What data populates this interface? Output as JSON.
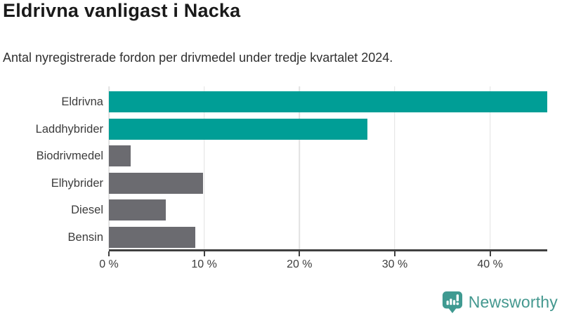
{
  "header": {
    "title": "Eldrivna vanligast i Nacka",
    "subtitle": "Antal nyregistrerade fordon per drivmedel under tredje kvartalet 2024."
  },
  "chart_data": {
    "type": "bar",
    "orientation": "horizontal",
    "title": "Eldrivna vanligast i Nacka",
    "subtitle": "Antal nyregistrerade fordon per drivmedel under tredje kvartalet 2024.",
    "categories": [
      "Eldrivna",
      "Laddhybrider",
      "Biodrivmedel",
      "Elhybrider",
      "Diesel",
      "Bensin"
    ],
    "values": [
      46,
      27.1,
      2.3,
      9.9,
      6,
      9.1
    ],
    "unit": "%",
    "xlabel": "",
    "ylabel": "",
    "xlim": [
      0,
      46
    ],
    "grid": "vertical",
    "legend": "none",
    "xticks": [
      {
        "value": 0,
        "label": "0 %"
      },
      {
        "value": 10,
        "label": "10 %"
      },
      {
        "value": 20,
        "label": "20 %"
      },
      {
        "value": 30,
        "label": "30 %"
      },
      {
        "value": 40,
        "label": "40 %"
      }
    ],
    "bar_colors": [
      "#009E96",
      "#009E96",
      "#6B6B70",
      "#6B6B70",
      "#6B6B70",
      "#6B6B70"
    ]
  },
  "colors": {
    "accent": "#009E96",
    "bar_default": "#6B6B70",
    "axis": "#404040",
    "gridline": "#E1E1E1",
    "title_text": "#1A1A1A",
    "body_text": "#303030",
    "brand": "#44988F"
  },
  "footer": {
    "brand": "Newsworthy"
  }
}
